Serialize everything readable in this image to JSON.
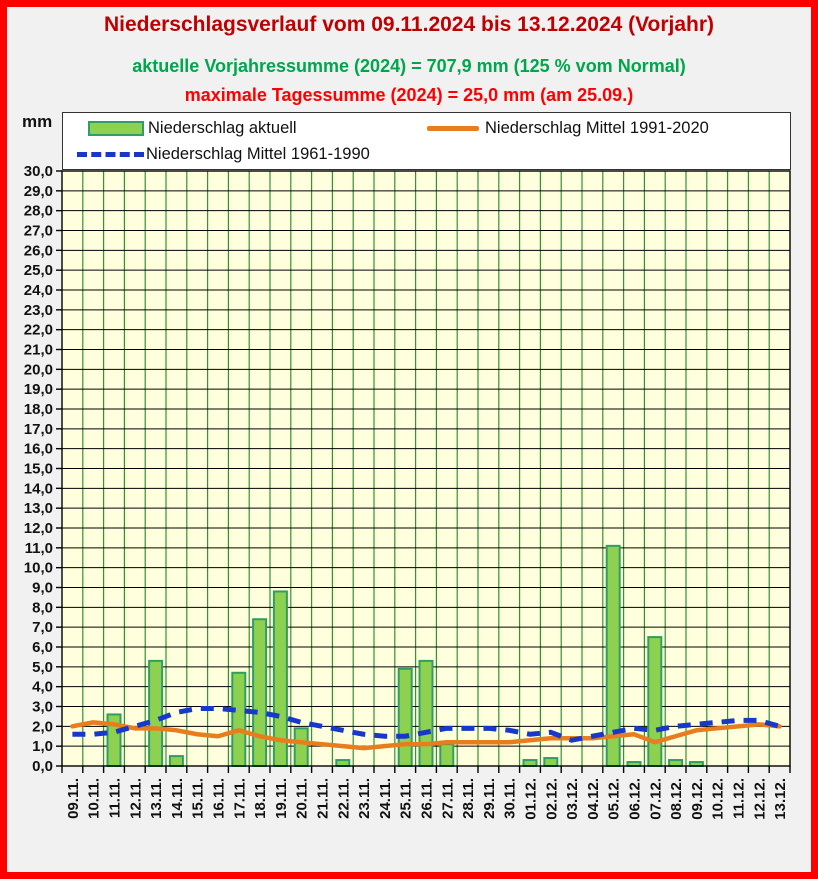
{
  "frame": {
    "border_color": "#FF0000",
    "background": "#F1F1F1"
  },
  "chart_data": {
    "type": "bar",
    "title": "Niederschlagsverlauf vom 09.11.2024 bis 13.12.2024 (Vorjahr)",
    "subtitle_1": "aktuelle Vorjahressumme (2024) = 707,9 mm (125 % vom Normal)",
    "subtitle_2": "maximale Tagessumme (2024) = 25,0 mm (am 25.09.)",
    "ylabel": "mm",
    "ylim": [
      0,
      30
    ],
    "ytick_step": 1.0,
    "ytick_format": "decimal-comma",
    "grid": "on",
    "legend_position": "top",
    "categories": [
      "09.11.",
      "10.11.",
      "11.11.",
      "12.11.",
      "13.11.",
      "14.11.",
      "15.11.",
      "16.11.",
      "17.11.",
      "18.11.",
      "19.11.",
      "20.11.",
      "21.11.",
      "22.11.",
      "23.11.",
      "24.11.",
      "25.11.",
      "26.11.",
      "27.11.",
      "28.11.",
      "29.11.",
      "30.11.",
      "01.12.",
      "02.12.",
      "03.12.",
      "04.12.",
      "05.12.",
      "06.12.",
      "07.12.",
      "08.12.",
      "09.12.",
      "10.12.",
      "11.12.",
      "12.12.",
      "13.12."
    ],
    "series": [
      {
        "name": "Niederschlag aktuell",
        "type": "bar",
        "fill": "#8ED050",
        "stroke": "#2F9E64",
        "values": [
          0,
          0,
          2.6,
          0,
          5.3,
          0.5,
          0,
          0,
          4.7,
          7.4,
          8.8,
          1.9,
          0,
          0.3,
          0,
          0,
          4.9,
          5.3,
          1.1,
          0,
          0,
          0,
          0.3,
          0.4,
          0,
          0,
          11.1,
          0.2,
          6.5,
          0.3,
          0.2,
          0,
          0,
          0,
          0
        ]
      },
      {
        "name": "Niederschlag Mittel 1991-2020",
        "type": "line",
        "color": "#E87D1E",
        "values": [
          2.0,
          2.2,
          2.1,
          1.9,
          1.9,
          1.8,
          1.6,
          1.5,
          1.8,
          1.5,
          1.3,
          1.2,
          1.1,
          1.0,
          0.9,
          1.0,
          1.1,
          1.1,
          1.2,
          1.2,
          1.2,
          1.2,
          1.3,
          1.4,
          1.4,
          1.4,
          1.5,
          1.6,
          1.2,
          1.5,
          1.8,
          1.9,
          2.0,
          2.1,
          2.0
        ]
      },
      {
        "name": "Niederschlag Mittel 1961-1990",
        "type": "dashed-line",
        "color": "#1838CC",
        "values": [
          1.6,
          1.6,
          1.7,
          2.0,
          2.3,
          2.7,
          2.9,
          2.9,
          2.8,
          2.7,
          2.5,
          2.2,
          2.0,
          1.8,
          1.6,
          1.5,
          1.5,
          1.7,
          1.9,
          1.9,
          1.9,
          1.8,
          1.6,
          1.7,
          1.3,
          1.5,
          1.7,
          1.9,
          1.8,
          2.0,
          2.1,
          2.2,
          2.3,
          2.3,
          2.0
        ]
      }
    ],
    "colors": {
      "title": "#C00000",
      "subtitle_1": "#00A64C",
      "subtitle_2": "#FF0000",
      "plot_bg": "#FFFFDE",
      "grid_h": "#000000",
      "grid_v": "#339333",
      "axis": "#000000",
      "legend_bg": "#FFFFFF",
      "legend_border": "#333333"
    }
  }
}
